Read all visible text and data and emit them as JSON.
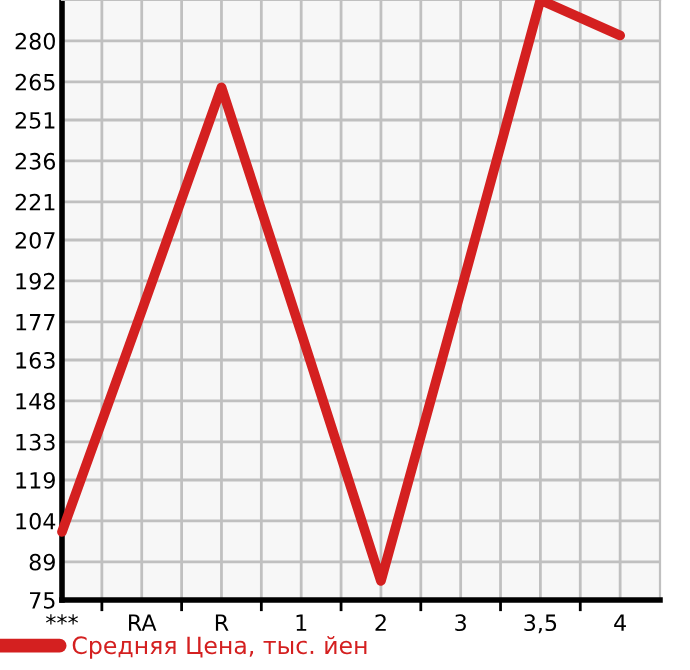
{
  "chart_data": {
    "type": "line",
    "categories": [
      "***",
      "RA",
      "R",
      "1",
      "2",
      "3",
      "3,5",
      "4"
    ],
    "series": [
      {
        "name": "Средняя Цена, тыс. йен",
        "color": "#d42020",
        "values": [
          100,
          181,
          263,
          173,
          82,
          188,
          295,
          282
        ]
      }
    ],
    "ylim": [
      75,
      295
    ],
    "yticks": [
      75,
      89,
      104,
      119,
      133,
      148,
      163,
      177,
      192,
      207,
      221,
      236,
      251,
      265,
      280
    ],
    "grid": true,
    "legend": "bottom left",
    "marker": "none",
    "line_style": "solid"
  }
}
